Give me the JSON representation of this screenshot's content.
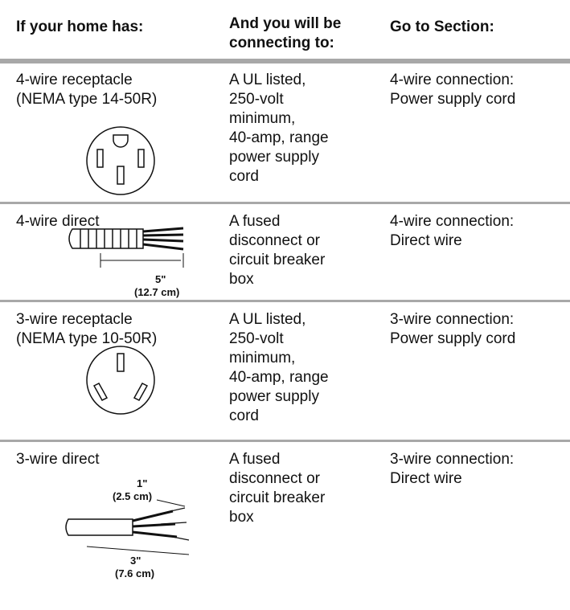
{
  "header": {
    "home": "If your home has:",
    "connect": [
      "And you will be",
      "connecting to:"
    ],
    "section": "Go to Section:"
  },
  "rows": [
    {
      "home": [
        "4-wire receptacle",
        "(NEMA type 14-50R)"
      ],
      "connect": [
        "A UL listed,",
        "250-volt",
        "minimum,",
        "40-amp, range",
        "power supply",
        "cord"
      ],
      "section": [
        "4-wire connection:",
        "Power supply cord"
      ]
    },
    {
      "home": [
        "4-wire direct"
      ],
      "figure_labels": [
        "5\"",
        "(12.7 cm)"
      ],
      "connect": [
        "A fused",
        "disconnect or",
        "circuit breaker",
        "box"
      ],
      "section": [
        "4-wire connection:",
        "Direct wire"
      ]
    },
    {
      "home": [
        "3-wire receptacle",
        "(NEMA type 10-50R)"
      ],
      "connect": [
        "A UL listed,",
        "250-volt",
        "minimum,",
        "40-amp, range",
        "power supply",
        "cord"
      ],
      "section": [
        "3-wire connection:",
        "Power supply cord"
      ]
    },
    {
      "home": [
        "3-wire direct"
      ],
      "figure_labels": [
        "1\"",
        "(2.5 cm)",
        "3\"",
        "(7.6 cm)"
      ],
      "connect": [
        "A fused",
        "disconnect or",
        "circuit breaker",
        "box"
      ],
      "section": [
        "3-wire connection:",
        "Direct wire"
      ]
    }
  ]
}
